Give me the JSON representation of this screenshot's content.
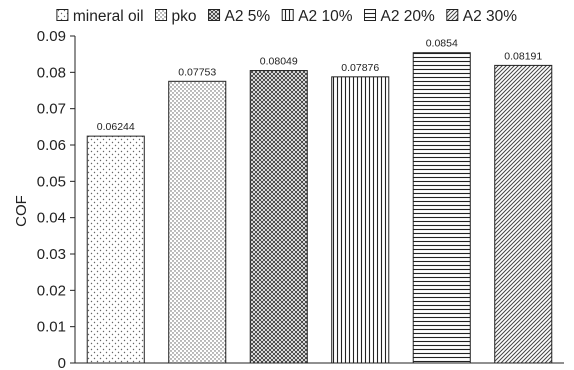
{
  "chart_data": {
    "type": "bar",
    "title": "",
    "xlabel": "",
    "ylabel": "COF",
    "ylim": [
      0,
      0.09
    ],
    "yticks": [
      "0",
      "0.01",
      "0.02",
      "0.03",
      "0.04",
      "0.05",
      "0.06",
      "0.07",
      "0.08",
      "0.09"
    ],
    "grid": false,
    "legend_position": "top",
    "series": [
      {
        "name": "mineral oil",
        "value": 0.06244,
        "label": "0.06244",
        "pattern": "sparse-dots"
      },
      {
        "name": "pko",
        "value": 0.07753,
        "label": "0.07753",
        "pattern": "dense-dots"
      },
      {
        "name": "A2  5%",
        "value": 0.08049,
        "label": "0.08049",
        "pattern": "crosshatch"
      },
      {
        "name": "A2 10%",
        "value": 0.07876,
        "label": "0.07876",
        "pattern": "vertical-lines"
      },
      {
        "name": "A2 20%",
        "value": 0.0854,
        "label": "0.0854",
        "pattern": "horizontal-lines"
      },
      {
        "name": "A2 30%",
        "value": 0.08191,
        "label": "0.08191",
        "pattern": "diagonal-hatch"
      }
    ]
  }
}
